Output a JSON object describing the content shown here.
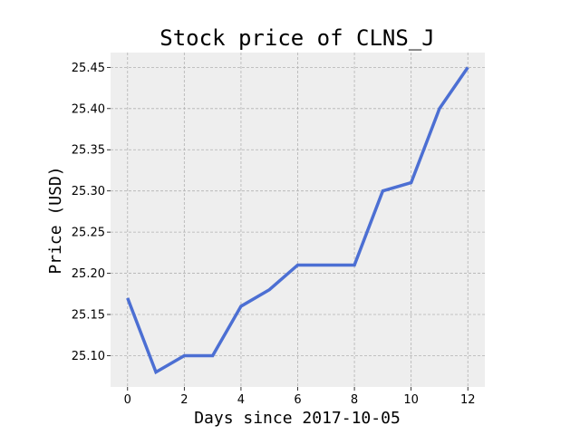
{
  "chart_data": {
    "type": "line",
    "title": "Stock price of CLNS_J",
    "xlabel": "Days since 2017-10-05",
    "ylabel": "Price (USD)",
    "x": [
      0,
      1,
      2,
      3,
      4,
      5,
      6,
      7,
      8,
      9,
      10,
      11,
      12
    ],
    "series": [
      {
        "values": [
          25.17,
          25.08,
          25.1,
          25.1,
          25.16,
          25.18,
          25.21,
          25.21,
          25.21,
          25.3,
          25.31,
          25.4,
          25.45
        ],
        "color": "#4c6fd3"
      }
    ],
    "xlim": [
      -0.6,
      12.6
    ],
    "ylim": [
      25.062,
      25.468
    ],
    "xticks": [
      0,
      2,
      4,
      6,
      8,
      10,
      12
    ],
    "xtick_labels": [
      "0",
      "2",
      "4",
      "6",
      "8",
      "10",
      "12"
    ],
    "yticks": [
      25.1,
      25.15,
      25.2,
      25.25,
      25.3,
      25.35,
      25.4,
      25.45
    ],
    "ytick_labels": [
      "25.10",
      "25.15",
      "25.20",
      "25.25",
      "25.30",
      "25.35",
      "25.40",
      "25.45"
    ],
    "grid": true,
    "background": "#eeeeee",
    "grid_color": "#b2b2b2"
  }
}
